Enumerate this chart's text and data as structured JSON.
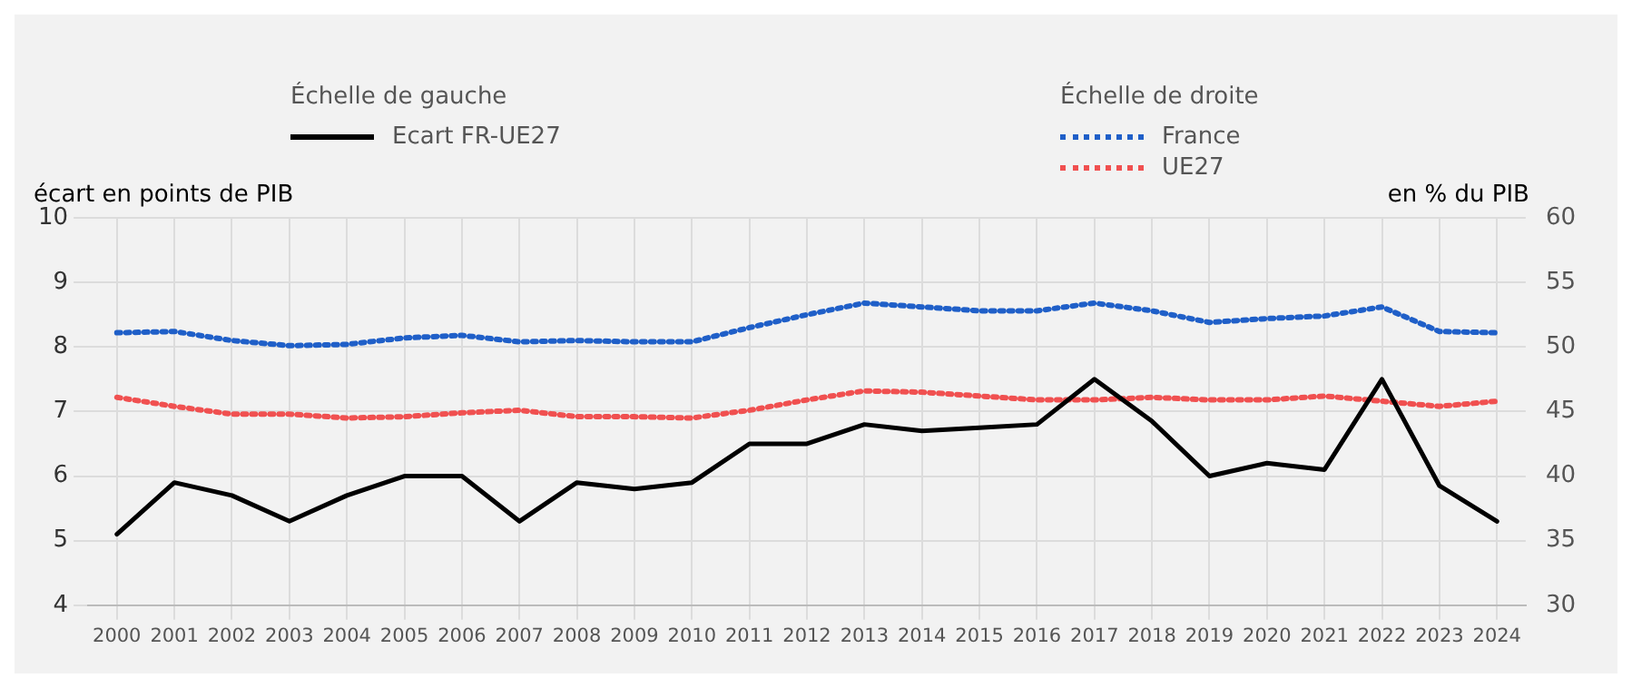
{
  "chart_data": {
    "type": "line",
    "ylabel": "écart en points de PIB",
    "y2label": "en % du PIB",
    "annotations": [
      "Échelle de gauche",
      "Échelle de droite"
    ],
    "categories": [
      "2000",
      "2001",
      "2002",
      "2003",
      "2004",
      "2005",
      "2006",
      "2007",
      "2008",
      "2009",
      "2010",
      "2011",
      "2012",
      "2013",
      "2014",
      "2015",
      "2016",
      "2017",
      "2018",
      "2019",
      "2020",
      "2021",
      "2022",
      "2023",
      "2024"
    ],
    "series": [
      {
        "name": "Ecart FR-UE27",
        "color": "#000000",
        "line_style": "solid",
        "values": [
          5.1,
          5.9,
          5.7,
          5.3,
          5.7,
          6.0,
          6.0,
          5.3,
          5.9,
          5.8,
          5.9,
          6.5,
          6.5,
          6.8,
          6.7,
          6.75,
          6.8,
          7.5,
          6.85,
          6.0,
          6.2,
          6.1,
          7.5,
          5.85,
          5.3
        ]
      },
      {
        "name": "France",
        "color": "#1f5fc8",
        "line_style": "dotted",
        "axis": "y2",
        "values": [
          51.1,
          51.2,
          50.5,
          50.1,
          50.2,
          50.7,
          50.9,
          50.4,
          50.5,
          50.4,
          50.4,
          51.5,
          52.5,
          53.4,
          53.1,
          52.8,
          52.8,
          53.4,
          52.8,
          51.9,
          52.2,
          52.4,
          53.1,
          51.2,
          51.1
        ]
      },
      {
        "name": "UE27",
        "color": "#f05050",
        "line_style": "dotted",
        "axis": "y2",
        "values": [
          46.1,
          45.4,
          44.8,
          44.8,
          44.5,
          44.6,
          44.9,
          45.1,
          44.6,
          44.6,
          44.5,
          45.1,
          45.9,
          46.6,
          46.5,
          46.2,
          45.9,
          45.9,
          46.1,
          45.9,
          45.9,
          46.2,
          45.8,
          45.4,
          45.8
        ]
      }
    ],
    "ylim": [
      4,
      10
    ],
    "yticks": [
      4,
      5,
      6,
      7,
      8,
      9,
      10
    ],
    "y2lim": [
      30,
      60
    ],
    "y2ticks": [
      30,
      35,
      40,
      45,
      50,
      55,
      60
    ],
    "grid": true,
    "legend": "top",
    "marker": "none"
  }
}
